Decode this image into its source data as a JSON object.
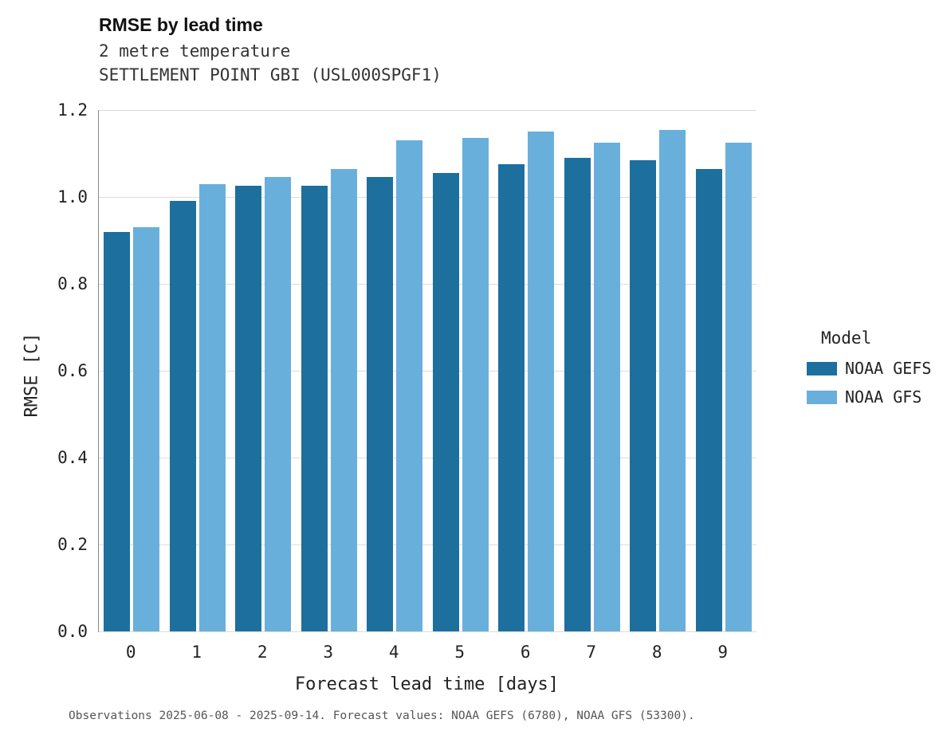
{
  "header": {
    "title": "RMSE by lead time",
    "subtitle": "2 metre temperature",
    "station_line": "SETTLEMENT POINT  GBI (USL000SPGF1)"
  },
  "footnote": "Observations 2025-06-08 - 2025-09-14. Forecast values: NOAA GEFS (6780), NOAA GFS (53300).",
  "legend": {
    "title": "Model",
    "items": [
      {
        "label": "NOAA GEFS",
        "color": "#1d6f9e"
      },
      {
        "label": "NOAA GFS",
        "color": "#69afdc"
      }
    ]
  },
  "chart_data": {
    "type": "bar",
    "title": "RMSE by lead time",
    "xlabel": "Forecast lead time [days]",
    "ylabel": "RMSE [C]",
    "categories": [
      "0",
      "1",
      "2",
      "3",
      "4",
      "5",
      "6",
      "7",
      "8",
      "9"
    ],
    "series": [
      {
        "name": "NOAA GEFS",
        "color": "#1d6f9e",
        "values": [
          0.92,
          0.99,
          1.025,
          1.025,
          1.045,
          1.055,
          1.075,
          1.09,
          1.085,
          1.065
        ]
      },
      {
        "name": "NOAA GFS",
        "color": "#69afdc",
        "values": [
          0.93,
          1.03,
          1.045,
          1.065,
          1.13,
          1.135,
          1.15,
          1.125,
          1.155,
          1.125
        ]
      }
    ],
    "ylim": [
      0.0,
      1.2
    ],
    "yticks": [
      0.0,
      0.2,
      0.4,
      0.6,
      0.8,
      1.0,
      1.2
    ],
    "grid": true,
    "legend_position": "right"
  }
}
